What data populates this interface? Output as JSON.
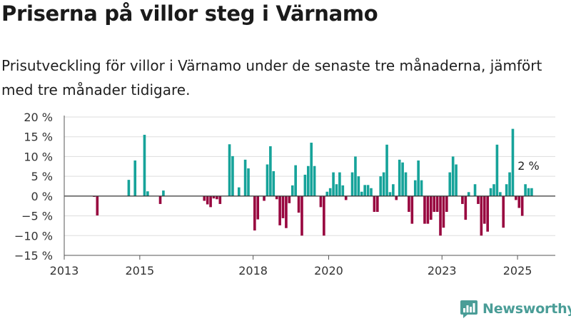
{
  "header": {
    "title": "Priserna på villor steg i Värnamo",
    "subtitle": "Prisutveckling för villor i Värnamo under de senaste tre månaderna, jämfört med tre månader tidigare."
  },
  "brand": {
    "name": "Newsworthy",
    "icon": "newsworthy-logo-icon",
    "color": "#4a9d97"
  },
  "colors": {
    "positive": "#16a39a",
    "negative": "#98063f",
    "grid": "#dddddd",
    "axis": "#555555"
  },
  "chart_data": {
    "type": "bar",
    "x_type": "date",
    "xlim": [
      "2013-01",
      "2025-12"
    ],
    "ylim": [
      -15,
      20
    ],
    "y_ticks": [
      20,
      15,
      10,
      5,
      0,
      -5,
      -10,
      -15
    ],
    "y_tick_labels": [
      "20 %",
      "15 %",
      "10 %",
      "5 %",
      "0 %",
      "−5 %",
      "−10 %",
      "−15 %"
    ],
    "x_ticks": [
      "2013-01",
      "2015-01",
      "2018-01",
      "2020-01",
      "2023-01",
      "2025-01"
    ],
    "x_tick_labels": [
      "2013",
      "2015",
      "2018",
      "2020",
      "2023",
      "2025"
    ],
    "grid": true,
    "annotation": {
      "text": "2 %",
      "date": "2025-04",
      "value": 2
    },
    "values": [
      {
        "date": "2013-10",
        "value": -0.2
      },
      {
        "date": "2013-11",
        "value": -4.9
      },
      {
        "date": "2014-09",
        "value": 4.1
      },
      {
        "date": "2014-11",
        "value": 9
      },
      {
        "date": "2015-02",
        "value": 15.5
      },
      {
        "date": "2015-03",
        "value": 1.2
      },
      {
        "date": "2015-07",
        "value": -2
      },
      {
        "date": "2015-08",
        "value": 1.4
      },
      {
        "date": "2016-09",
        "value": -1.2
      },
      {
        "date": "2016-10",
        "value": -2.1
      },
      {
        "date": "2016-11",
        "value": -2.8
      },
      {
        "date": "2016-12",
        "value": -0.6
      },
      {
        "date": "2017-01",
        "value": -0.8
      },
      {
        "date": "2017-02",
        "value": -2
      },
      {
        "date": "2017-05",
        "value": 13.1
      },
      {
        "date": "2017-06",
        "value": 10.1
      },
      {
        "date": "2017-08",
        "value": 2.2
      },
      {
        "date": "2017-10",
        "value": 9.2
      },
      {
        "date": "2017-11",
        "value": 7
      },
      {
        "date": "2018-01",
        "value": -8.7
      },
      {
        "date": "2018-02",
        "value": -5.9
      },
      {
        "date": "2018-04",
        "value": -1.2
      },
      {
        "date": "2018-05",
        "value": 8
      },
      {
        "date": "2018-06",
        "value": 12.6
      },
      {
        "date": "2018-07",
        "value": 6.3
      },
      {
        "date": "2018-08",
        "value": -0.8
      },
      {
        "date": "2018-09",
        "value": -7.4
      },
      {
        "date": "2018-10",
        "value": -5.6
      },
      {
        "date": "2018-11",
        "value": -8.1
      },
      {
        "date": "2018-12",
        "value": -1.8
      },
      {
        "date": "2019-01",
        "value": 2.7
      },
      {
        "date": "2019-02",
        "value": 7.8
      },
      {
        "date": "2019-03",
        "value": -4.2
      },
      {
        "date": "2019-04",
        "value": -10
      },
      {
        "date": "2019-05",
        "value": 5.4
      },
      {
        "date": "2019-06",
        "value": 7.6
      },
      {
        "date": "2019-07",
        "value": 13.5
      },
      {
        "date": "2019-08",
        "value": 7.6
      },
      {
        "date": "2019-10",
        "value": -2.8
      },
      {
        "date": "2019-11",
        "value": -10
      },
      {
        "date": "2019-12",
        "value": 1.1
      },
      {
        "date": "2020-01",
        "value": 2
      },
      {
        "date": "2020-02",
        "value": 6
      },
      {
        "date": "2020-03",
        "value": 3
      },
      {
        "date": "2020-04",
        "value": 6
      },
      {
        "date": "2020-05",
        "value": 2.7
      },
      {
        "date": "2020-06",
        "value": -1
      },
      {
        "date": "2020-08",
        "value": 6
      },
      {
        "date": "2020-09",
        "value": 10
      },
      {
        "date": "2020-10",
        "value": 5
      },
      {
        "date": "2020-11",
        "value": 1.1
      },
      {
        "date": "2020-12",
        "value": 2.8
      },
      {
        "date": "2021-01",
        "value": 2.8
      },
      {
        "date": "2021-02",
        "value": 2
      },
      {
        "date": "2021-03",
        "value": -4
      },
      {
        "date": "2021-04",
        "value": -4
      },
      {
        "date": "2021-05",
        "value": 5
      },
      {
        "date": "2021-06",
        "value": 6
      },
      {
        "date": "2021-07",
        "value": 13
      },
      {
        "date": "2021-08",
        "value": 1
      },
      {
        "date": "2021-09",
        "value": 3
      },
      {
        "date": "2021-10",
        "value": -1
      },
      {
        "date": "2021-11",
        "value": 9.2
      },
      {
        "date": "2021-12",
        "value": 8.5
      },
      {
        "date": "2022-01",
        "value": 6
      },
      {
        "date": "2022-02",
        "value": -4
      },
      {
        "date": "2022-03",
        "value": -7
      },
      {
        "date": "2022-04",
        "value": 4
      },
      {
        "date": "2022-05",
        "value": 9
      },
      {
        "date": "2022-06",
        "value": 4
      },
      {
        "date": "2022-07",
        "value": -7
      },
      {
        "date": "2022-08",
        "value": -7
      },
      {
        "date": "2022-09",
        "value": -6
      },
      {
        "date": "2022-10",
        "value": -4
      },
      {
        "date": "2022-11",
        "value": -4
      },
      {
        "date": "2022-12",
        "value": -10
      },
      {
        "date": "2023-01",
        "value": -8
      },
      {
        "date": "2023-02",
        "value": -4
      },
      {
        "date": "2023-03",
        "value": 6
      },
      {
        "date": "2023-04",
        "value": 10
      },
      {
        "date": "2023-05",
        "value": 8
      },
      {
        "date": "2023-07",
        "value": -2
      },
      {
        "date": "2023-08",
        "value": -6
      },
      {
        "date": "2023-09",
        "value": 1
      },
      {
        "date": "2023-11",
        "value": 3
      },
      {
        "date": "2023-12",
        "value": -2
      },
      {
        "date": "2024-01",
        "value": -10
      },
      {
        "date": "2024-02",
        "value": -7
      },
      {
        "date": "2024-03",
        "value": -9
      },
      {
        "date": "2024-04",
        "value": 2
      },
      {
        "date": "2024-05",
        "value": 3
      },
      {
        "date": "2024-06",
        "value": 13
      },
      {
        "date": "2024-07",
        "value": 1
      },
      {
        "date": "2024-08",
        "value": -8
      },
      {
        "date": "2024-09",
        "value": 3
      },
      {
        "date": "2024-10",
        "value": 6
      },
      {
        "date": "2024-11",
        "value": 17
      },
      {
        "date": "2024-12",
        "value": -1
      },
      {
        "date": "2025-01",
        "value": -3
      },
      {
        "date": "2025-02",
        "value": -5
      },
      {
        "date": "2025-03",
        "value": 3
      },
      {
        "date": "2025-04",
        "value": 2
      },
      {
        "date": "2025-05",
        "value": 2
      }
    ]
  }
}
